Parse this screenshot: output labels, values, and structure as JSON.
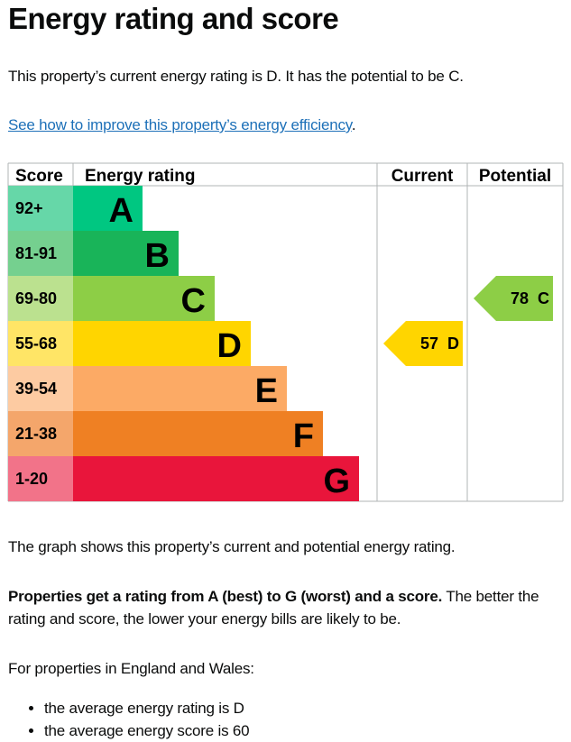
{
  "heading": "Energy rating and score",
  "intro": "This property’s current energy rating is D. It has the potential to be C.",
  "improve_link": "See how to improve this property’s energy efficiency",
  "improve_link_suffix": ".",
  "chart_data": {
    "type": "bar",
    "headers": {
      "score": "Score",
      "rating": "Energy rating",
      "current": "Current",
      "potential": "Potential"
    },
    "bands": [
      {
        "score": "92+",
        "letter": "A",
        "color": "#00c781",
        "score_color": "#66d7a8"
      },
      {
        "score": "81-91",
        "letter": "B",
        "color": "#19b459",
        "score_color": "#75d08f"
      },
      {
        "score": "69-80",
        "letter": "C",
        "color": "#8dce46",
        "score_color": "#bbe18f"
      },
      {
        "score": "55-68",
        "letter": "D",
        "color": "#ffd500",
        "score_color": "#ffe566"
      },
      {
        "score": "39-54",
        "letter": "E",
        "color": "#fcaa65",
        "score_color": "#fdcba2"
      },
      {
        "score": "21-38",
        "letter": "F",
        "color": "#ef8023",
        "score_color": "#f4a66b"
      },
      {
        "score": "1-20",
        "letter": "G",
        "color": "#e9153b",
        "score_color": "#f27389"
      }
    ],
    "current": {
      "score": "57",
      "letter": "D",
      "color": "#ffd500"
    },
    "potential": {
      "score": "78",
      "letter": "C",
      "color": "#8dce46"
    }
  },
  "graph_note": "The graph shows this property’s current and potential energy rating.",
  "ratings_bold": "Properties get a rating from A (best) to G (worst) and a score.",
  "ratings_rest": " The better the rating and score, the lower your energy bills are likely to be.",
  "england_wales": "For properties in England and Wales:",
  "averages": [
    "the average energy rating is D",
    "the average energy score is 60"
  ]
}
